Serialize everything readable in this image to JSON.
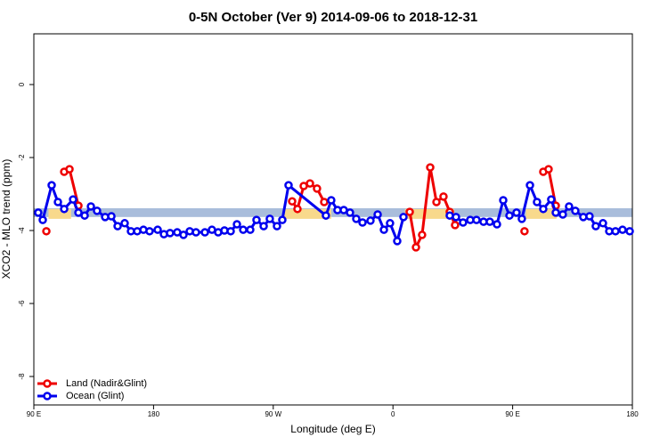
{
  "chart_data": {
    "type": "line",
    "title": "0-5N October (Ver 9)   2014-09-06 to 2018-12-31",
    "xlabel": "Longitude (deg E)",
    "ylabel": "XCO2 - MLO trend (ppm)",
    "xlim": [
      90,
      540
    ],
    "ylim": [
      -8.78,
      1.39
    ],
    "xticks": [
      {
        "value": 90,
        "label": "90 E"
      },
      180,
      {
        "value": 270,
        "label": "90 W"
      },
      {
        "value": 360,
        "label": "0"
      },
      {
        "value": 450,
        "label": "90 E"
      },
      {
        "value": 540,
        "label": "180"
      }
    ],
    "yticks": [
      0,
      -2,
      -4,
      -6,
      -8
    ],
    "legend": "bottomleft",
    "bands": [
      {
        "color": "#a9bddb",
        "xlim": [
          90,
          540
        ],
        "ylim": [
          -3.63,
          -3.39
        ]
      },
      {
        "color": "#f8d98c",
        "xlim": [
          101,
          118
        ],
        "ylim": [
          -3.68,
          -3.41
        ]
      },
      {
        "color": "#f8d98c",
        "xlim": [
          277.5,
          313.6
        ],
        "ylim": [
          -3.68,
          -3.41
        ]
      },
      {
        "color": "#f8d98c",
        "xlim": [
          369,
          406
        ],
        "ylim": [
          -3.68,
          -3.41
        ]
      },
      {
        "color": "#f8d98c",
        "xlim": [
          460,
          483
        ],
        "ylim": [
          -3.68,
          -3.41
        ]
      }
    ],
    "series": [
      {
        "name": "Land (Nadir&Glint)",
        "color": "#ee0000",
        "x": [
          99.4,
          null,
          112.8,
          116.8,
          123.5,
          null,
          284.2,
          288.2,
          292.9,
          297.6,
          302.9,
          308.3,
          null,
          372.6,
          377.3,
          381.9,
          388.0,
          392.7,
          398.0,
          402.7,
          406.7,
          null,
          458.9,
          null,
          473.0,
          477.0,
          482.4
        ],
        "values": [
          -4.02,
          null,
          -2.39,
          -2.32,
          -3.32,
          null,
          -3.2,
          -3.41,
          -2.78,
          -2.71,
          -2.85,
          -3.22,
          null,
          -3.49,
          -4.46,
          -4.12,
          -2.27,
          -3.22,
          -3.07,
          -3.49,
          -3.85,
          null,
          -4.02,
          null,
          -2.39,
          -2.32,
          -3.32
        ]
      },
      {
        "name": "Ocean (Glint)",
        "color": "#0000ee",
        "x": [
          93.3,
          96.7,
          103.4,
          108.1,
          112.8,
          119.5,
          123.5,
          128.2,
          132.9,
          137.5,
          143.6,
          148.3,
          153.0,
          158.3,
          163.0,
          167.7,
          172.4,
          177.0,
          183.1,
          187.8,
          192.4,
          197.8,
          202.5,
          207.2,
          211.9,
          218.6,
          223.9,
          228.6,
          233.3,
          238.0,
          242.7,
          247.4,
          252.7,
          257.4,
          262.8,
          267.4,
          272.8,
          276.8,
          281.5,
          309.6,
          313.6,
          318.3,
          323.0,
          327.7,
          332.4,
          337.1,
          343.1,
          348.5,
          353.2,
          357.8,
          363.2,
          367.9,
          null,
          402.7,
          407.4,
          412.7,
          418.1,
          422.8,
          428.1,
          432.8,
          438.2,
          442.9,
          447.6,
          452.9,
          456.9,
          463.0,
          468.3,
          473.0,
          479.0,
          482.4,
          487.7,
          492.4,
          497.1,
          503.1,
          507.8,
          512.5,
          517.9,
          522.6,
          527.3,
          532.6,
          538.0
        ],
        "values": [
          -3.51,
          -3.71,
          -2.76,
          -3.22,
          -3.41,
          -3.15,
          -3.51,
          -3.59,
          -3.34,
          -3.46,
          -3.63,
          -3.61,
          -3.88,
          -3.8,
          -4.02,
          -4.02,
          -3.98,
          -4.02,
          -3.98,
          -4.1,
          -4.07,
          -4.05,
          -4.12,
          -4.02,
          -4.05,
          -4.05,
          -3.98,
          -4.05,
          -4.0,
          -4.02,
          -3.83,
          -3.98,
          -3.98,
          -3.71,
          -3.88,
          -3.68,
          -3.88,
          -3.71,
          -2.76,
          -3.59,
          -3.17,
          -3.44,
          -3.44,
          -3.51,
          -3.68,
          -3.78,
          -3.73,
          -3.56,
          -3.98,
          -3.8,
          -4.29,
          -3.63,
          null,
          -3.59,
          -3.63,
          -3.78,
          -3.71,
          -3.71,
          -3.76,
          -3.76,
          -3.83,
          -3.17,
          -3.59,
          -3.51,
          -3.68,
          -2.76,
          -3.22,
          -3.41,
          -3.15,
          -3.51,
          -3.56,
          -3.34,
          -3.46,
          -3.63,
          -3.61,
          -3.88,
          -3.8,
          -4.02,
          -4.02,
          -3.98,
          -4.02
        ]
      }
    ]
  }
}
